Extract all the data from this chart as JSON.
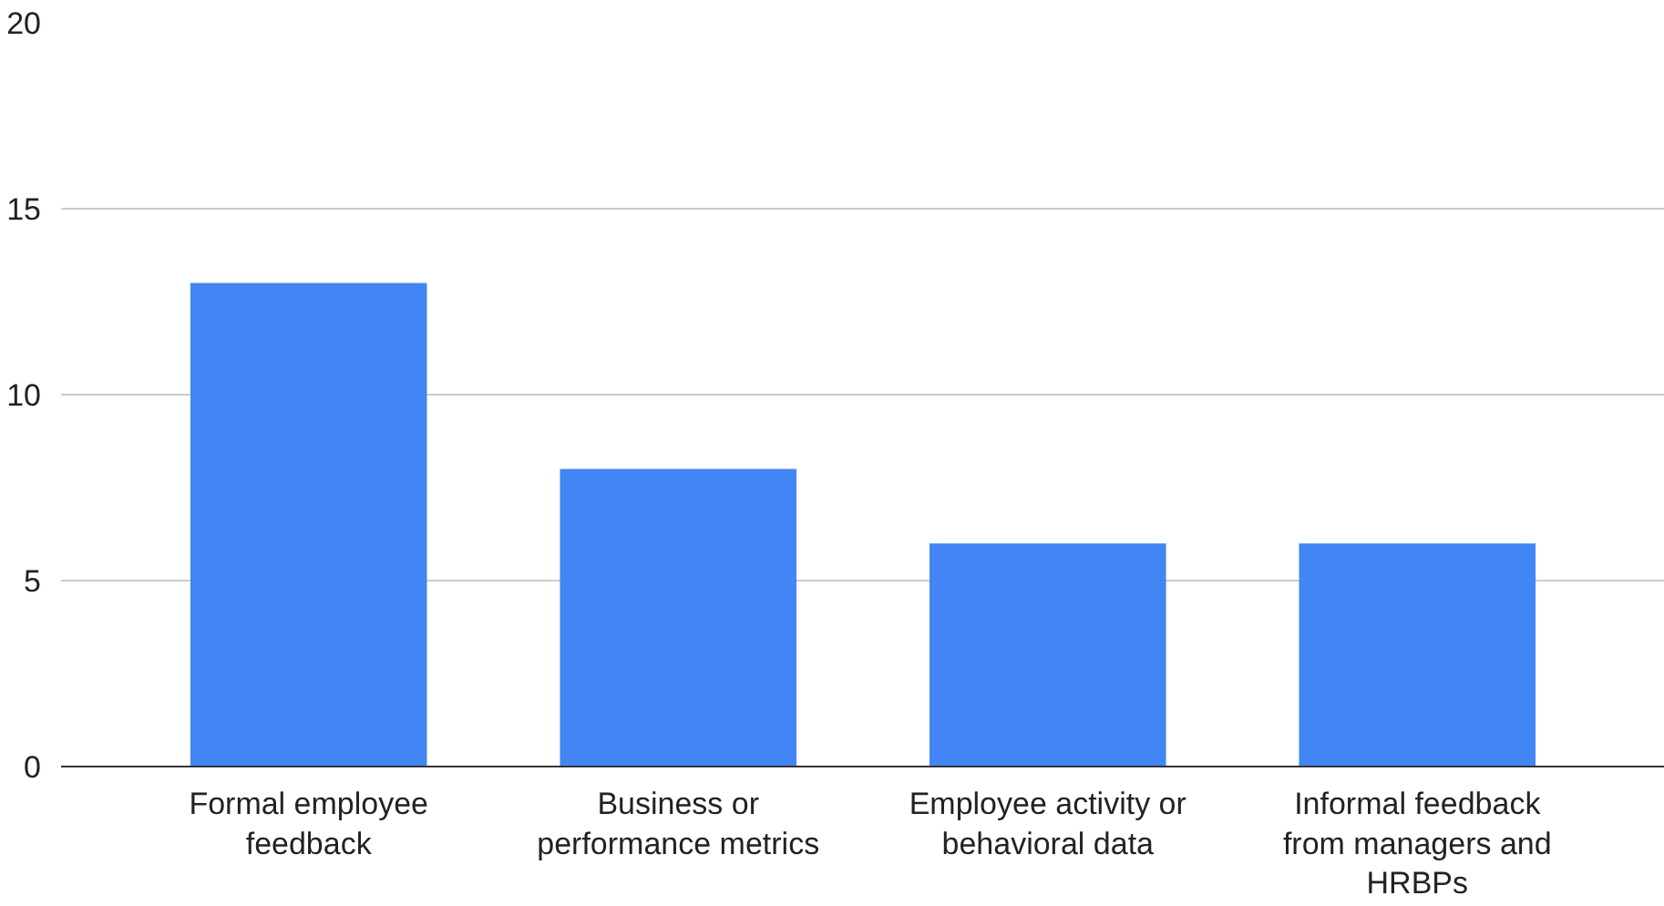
{
  "chart_data": {
    "type": "bar",
    "categories": [
      "Formal employee feedback",
      "Business or performance metrics",
      "Employee activity or behavioral data",
      "Informal feedback from managers and HRBPs"
    ],
    "values": [
      13,
      8,
      6,
      6
    ],
    "color": "#4285f4",
    "ylim": [
      0,
      20
    ],
    "yticks": [
      0,
      5,
      10,
      15,
      20
    ],
    "grid": "y"
  }
}
